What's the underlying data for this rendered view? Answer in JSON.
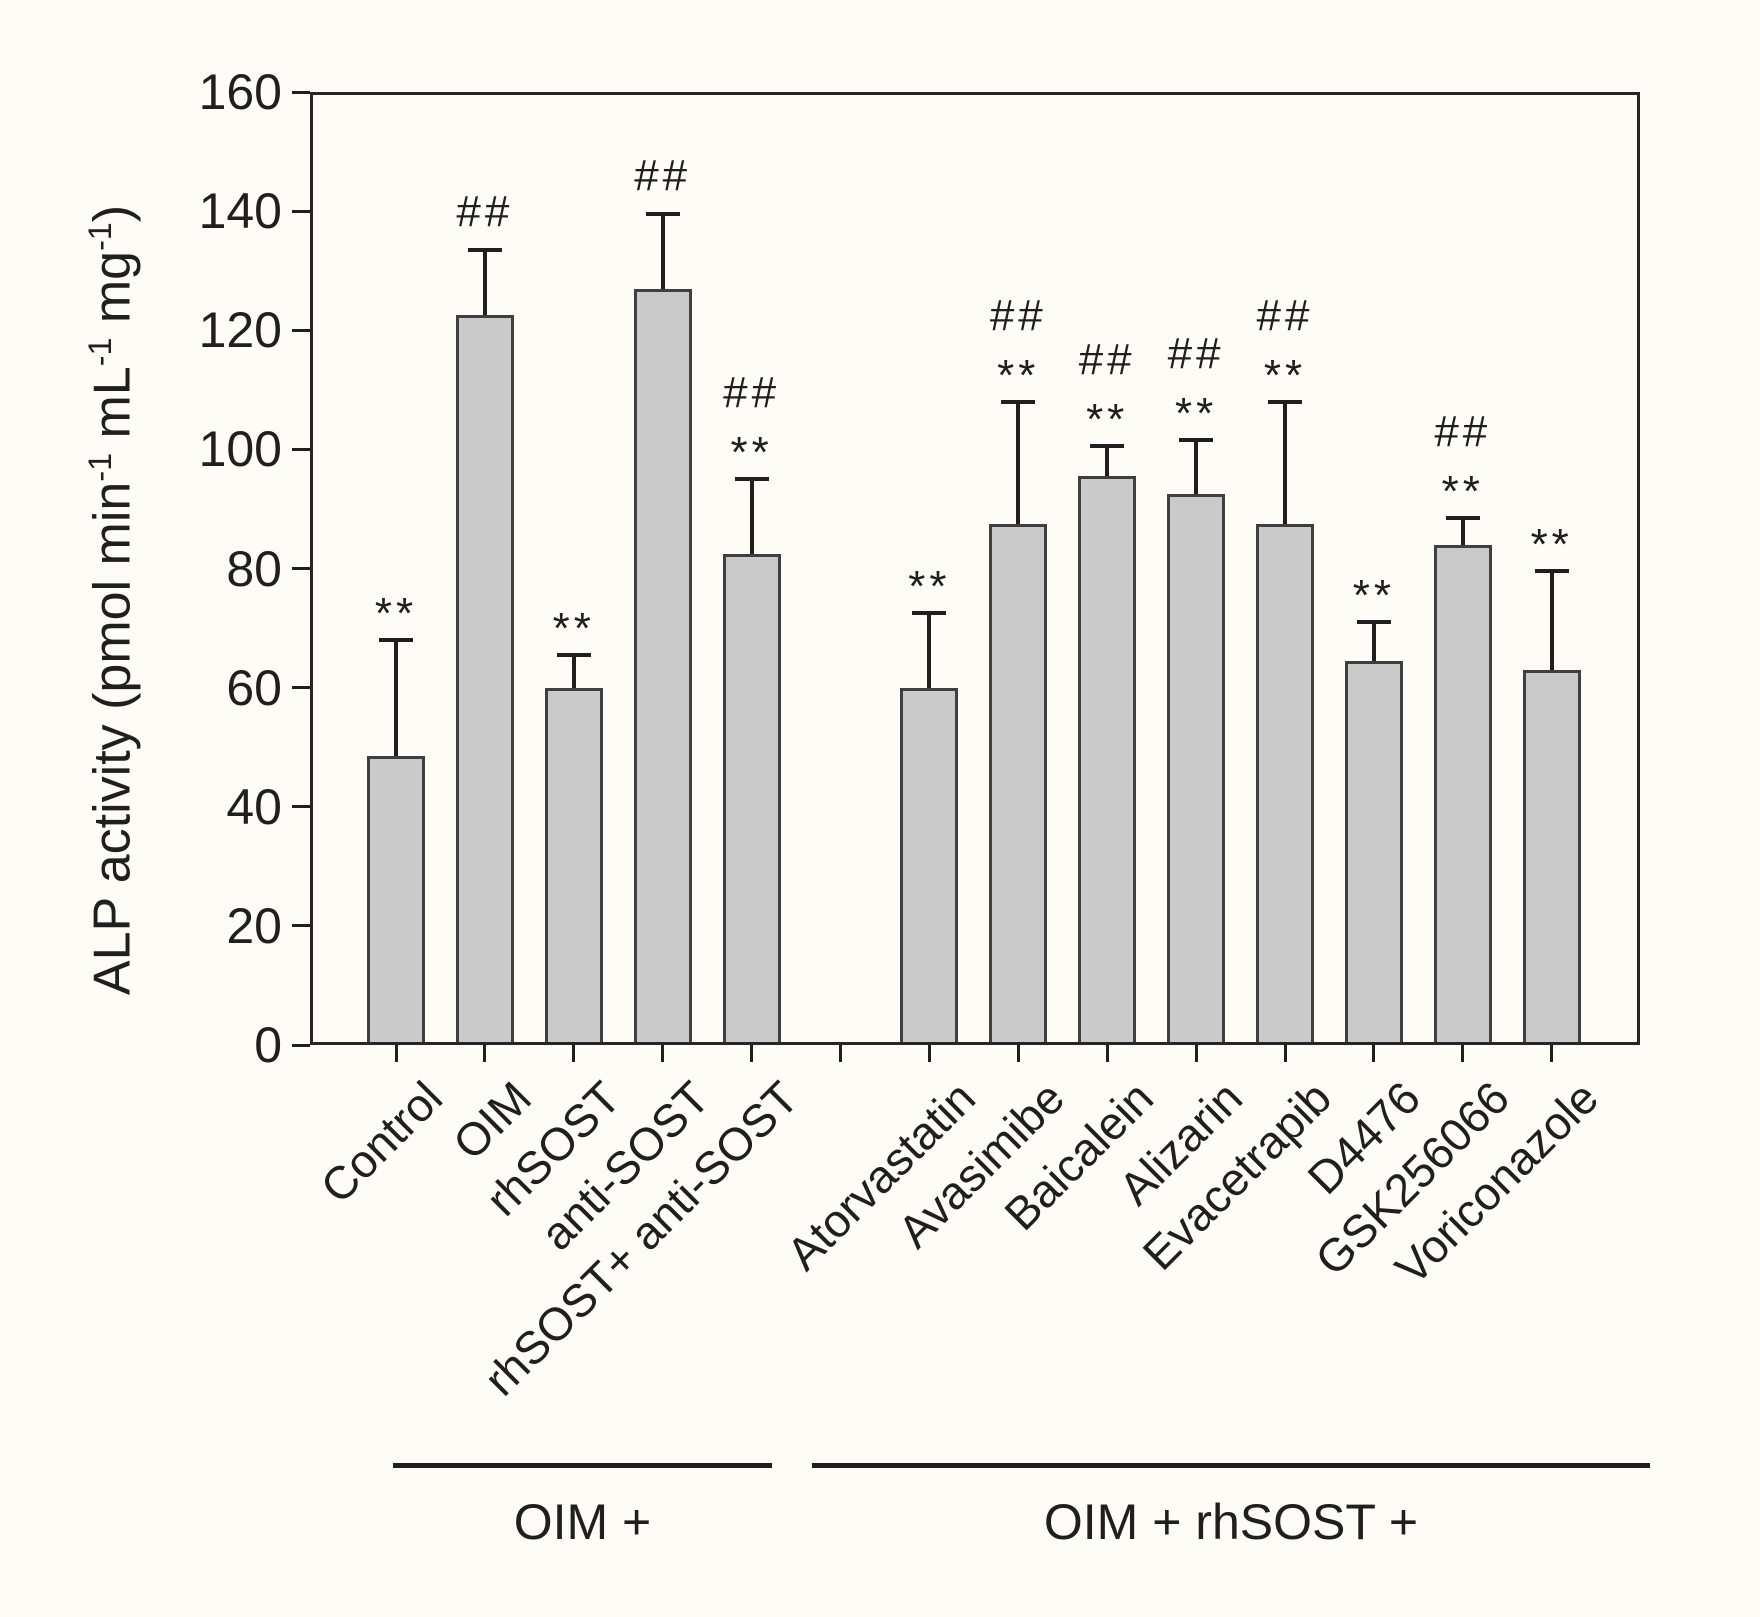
{
  "figure": {
    "background": "#fdfcf7",
    "text_color": "#1f1f1f",
    "axis_color": "#262626"
  },
  "chart_data": {
    "type": "bar",
    "title": "",
    "xlabel": "",
    "ylabel": "ALP activity (pmol min⁻¹ mL⁻¹ mg⁻¹)",
    "ylabel_parts": [
      {
        "text": "ALP activity (pmol min"
      },
      {
        "sup": "-1"
      },
      {
        "text": " mL"
      },
      {
        "sup": "-1"
      },
      {
        "text": " mg"
      },
      {
        "sup": "-1"
      },
      {
        "text": ")"
      }
    ],
    "ylim": [
      0,
      160
    ],
    "yticks": [
      0,
      20,
      40,
      60,
      80,
      100,
      120,
      140,
      160
    ],
    "ytick_labels": [
      "0",
      "20",
      "40",
      "60",
      "80",
      "100",
      "120",
      "140",
      "160"
    ],
    "grid": false,
    "legend": "none",
    "bar_color": "#cacaca",
    "bar_edge_color": "#3f3f3f",
    "categories": [
      "Control",
      "OIM",
      "rhSOST",
      "anti-SOST",
      "rhSOST+ anti-SOST",
      "Atorvastatin",
      "Avasimibe",
      "Baicalein",
      "Alizarin",
      "Evacetrapib",
      "D4476",
      "GSK256066",
      "Voriconazole"
    ],
    "values": [
      48.5,
      122.5,
      60,
      127,
      82.5,
      60,
      87.5,
      95.5,
      92.5,
      87.5,
      64.5,
      84,
      63
    ],
    "errors_upper": [
      19.5,
      11,
      5.5,
      12.5,
      12.5,
      12.5,
      20.5,
      5,
      9,
      20.5,
      6.5,
      4.5,
      16.5
    ],
    "significance": [
      [
        "**"
      ],
      [
        "##"
      ],
      [
        "**"
      ],
      [
        "##"
      ],
      [
        "##",
        "**"
      ],
      [
        "**"
      ],
      [
        "##",
        "**"
      ],
      [
        "##",
        "**"
      ],
      [
        "##",
        "**"
      ],
      [
        "##",
        "**"
      ],
      [
        "**"
      ],
      [
        "##",
        "**"
      ],
      [
        "**"
      ]
    ],
    "groups": [
      {
        "label": "OIM +",
        "categories": [
          "Control",
          "OIM",
          "rhSOST",
          "anti-SOST",
          "rhSOST+ anti-SOST"
        ]
      },
      {
        "label": "OIM + rhSOST +",
        "categories": [
          "Atorvastatin",
          "Avasimibe",
          "Baicalein",
          "Alizarin",
          "Evacetrapib",
          "D4476",
          "GSK256066",
          "Voriconazole"
        ]
      }
    ]
  }
}
